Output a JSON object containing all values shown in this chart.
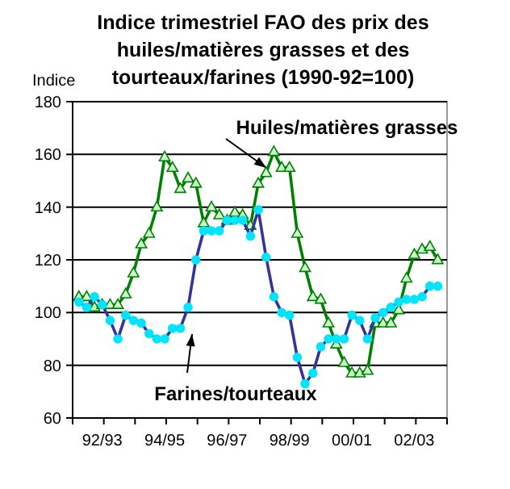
{
  "chart_data": {
    "type": "line",
    "title": "Indice trimestriel FAO des prix des\nhuiles/matières grasses et des\ntourteaux/farines (1990-92=100)",
    "ylabel": "Indice",
    "categories": [
      null,
      null,
      null,
      "92/93",
      null,
      null,
      null,
      null,
      null,
      null,
      null,
      "94/95",
      null,
      null,
      null,
      null,
      null,
      null,
      null,
      "96/97",
      null,
      null,
      null,
      null,
      null,
      null,
      null,
      "98/99",
      null,
      null,
      null,
      null,
      null,
      null,
      null,
      "00/01",
      null,
      null,
      null,
      null,
      null,
      null,
      null,
      "02/03",
      null,
      null,
      null
    ],
    "series": [
      {
        "name": "Huiles/matières grasses",
        "color": "#008000",
        "marker": "triangle",
        "values": [
          106,
          106,
          102,
          103,
          103,
          103,
          107,
          115,
          126,
          130,
          140,
          159,
          155,
          147,
          151,
          149,
          134,
          140,
          137,
          135,
          138,
          137,
          133,
          149,
          153,
          161,
          155,
          155,
          130,
          117,
          106,
          105,
          96,
          88,
          81,
          77,
          77,
          78,
          96,
          96,
          96,
          101,
          113,
          122,
          124,
          125,
          120
        ]
      },
      {
        "name": "Farines/tourteaux",
        "color": "#333399",
        "marker": "circle",
        "values": [
          104,
          102,
          106,
          103,
          97,
          90,
          99,
          97,
          96,
          92,
          90,
          90,
          94,
          94,
          102,
          120,
          131,
          131,
          131,
          135,
          135,
          135,
          129,
          139,
          121,
          106,
          100,
          99,
          83,
          73,
          77,
          87,
          90,
          90,
          90,
          99,
          97,
          90,
          98,
          100,
          102,
          104,
          105,
          105,
          106,
          110,
          110
        ]
      }
    ],
    "ylim": [
      60,
      180
    ],
    "yticks": [
      60,
      80,
      100,
      120,
      140,
      160,
      180
    ],
    "grid": "y"
  }
}
